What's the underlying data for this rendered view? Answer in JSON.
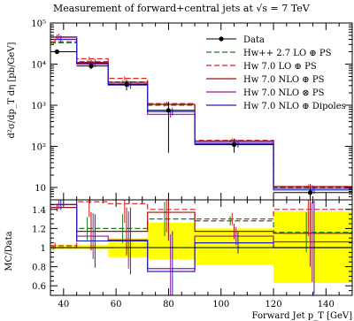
{
  "chart_data": [
    {
      "type": "line",
      "title": "Measurement of forward+central jets at √s = 7 TeV",
      "ylabel": "d²σ/dp_T dη [pb/GeV]",
      "xlabel": "",
      "xlim": [
        35,
        150
      ],
      "ylim": [
        5,
        100000
      ],
      "yscale": "log",
      "y_ticks": [
        "10",
        "10²",
        "10³",
        "10⁴",
        "10⁵"
      ],
      "bin_edges": [
        35,
        45,
        57,
        72,
        90,
        120,
        150
      ],
      "legend_position": "top-right",
      "data": {
        "name": "Data",
        "x": [
          37.5,
          50.5,
          64,
          80,
          105,
          134
        ],
        "y": [
          20000,
          9000,
          3200,
          750,
          110,
          7.5
        ],
        "yerr_low": [
          2000,
          1500,
          900,
          680,
          40,
          2.5
        ],
        "yerr_high": [
          2000,
          1500,
          900,
          450,
          40,
          2.5
        ]
      },
      "series": [
        {
          "name": "Hw++ 2.7 LO ⊕ PS",
          "color": "#1a7a1a",
          "dash": "dashed",
          "values": [
            33000,
            11500,
            3700,
            1000,
            135,
            10
          ]
        },
        {
          "name": "Hw 7.0 LO ⊕ PS",
          "color": "#e02020",
          "dash": "dashed",
          "values": [
            35000,
            13500,
            4500,
            1100,
            140,
            10.5
          ]
        },
        {
          "name": "Hw 7.0 NLO ⊕ PS",
          "color": "#a01010",
          "dash": "solid",
          "values": [
            45000,
            11000,
            3600,
            1050,
            135,
            10.5
          ]
        },
        {
          "name": "Hw 7.0 NLO ⊗ PS",
          "color": "#9a1a9a",
          "dash": "solid",
          "values": [
            46000,
            10000,
            3300,
            600,
            125,
            9.5
          ]
        },
        {
          "name": "Hw 7.0 NLO ⊕ Dipoles",
          "color": "#2020c0",
          "dash": "solid",
          "values": [
            40000,
            10500,
            3100,
            700,
            115,
            8.7
          ]
        }
      ]
    },
    {
      "type": "line",
      "title": "",
      "ylabel": "MC/Data",
      "xlabel": "Forward Jet p_T [GeV]",
      "xlim": [
        35,
        150
      ],
      "ylim": [
        0.5,
        1.5
      ],
      "x_ticks": [
        "40",
        "60",
        "80",
        "100",
        "120",
        "140"
      ],
      "y_ticks": [
        "0.6",
        "0.8",
        "1",
        "1.2",
        "1.4"
      ],
      "bin_edges": [
        35,
        45,
        57,
        72,
        90,
        120,
        150
      ],
      "data_band": {
        "color": "#ffff00",
        "low": [
          0.98,
          0.98,
          0.9,
          0.88,
          0.82,
          0.63
        ],
        "high": [
          1.03,
          1.03,
          1.1,
          1.26,
          1.2,
          1.38
        ]
      },
      "data": {
        "x": [
          37.5,
          50.5,
          64,
          80,
          105,
          134
        ],
        "y": [
          1.0,
          1.0,
          1.0,
          1.0,
          1.0,
          1.0
        ]
      },
      "series": [
        {
          "name": "Hw++ 2.7 LO ⊕ PS",
          "color": "#1a7a1a",
          "dash": "dashed",
          "values": [
            1.0,
            1.2,
            1.2,
            1.3,
            1.28,
            1.16
          ]
        },
        {
          "name": "Hw 7.0 LO ⊕ PS",
          "color": "#e02020",
          "dash": "dashed",
          "values": [
            1.02,
            1.48,
            1.46,
            1.4,
            1.3,
            1.4
          ]
        },
        {
          "name": "Hw 7.0 NLO ⊕ PS",
          "color": "#a01010",
          "dash": "solid",
          "values": [
            1.42,
            1.17,
            1.17,
            1.37,
            1.17,
            1.15
          ]
        },
        {
          "name": "Hw 7.0 NLO ⊗ PS",
          "color": "#9a1a9a",
          "dash": "solid",
          "values": [
            1.45,
            1.12,
            1.08,
            0.78,
            1.12,
            1.06
          ]
        },
        {
          "name": "Hw 7.0 NLO ⊕ Dipoles",
          "color": "#2020c0",
          "dash": "solid",
          "values": [
            1.45,
            1.07,
            1.07,
            0.75,
            1.05,
            1.0
          ]
        }
      ],
      "mc_error_half": [
        0.04,
        0.2,
        0.25,
        0.3,
        0.08,
        0.35
      ]
    }
  ]
}
